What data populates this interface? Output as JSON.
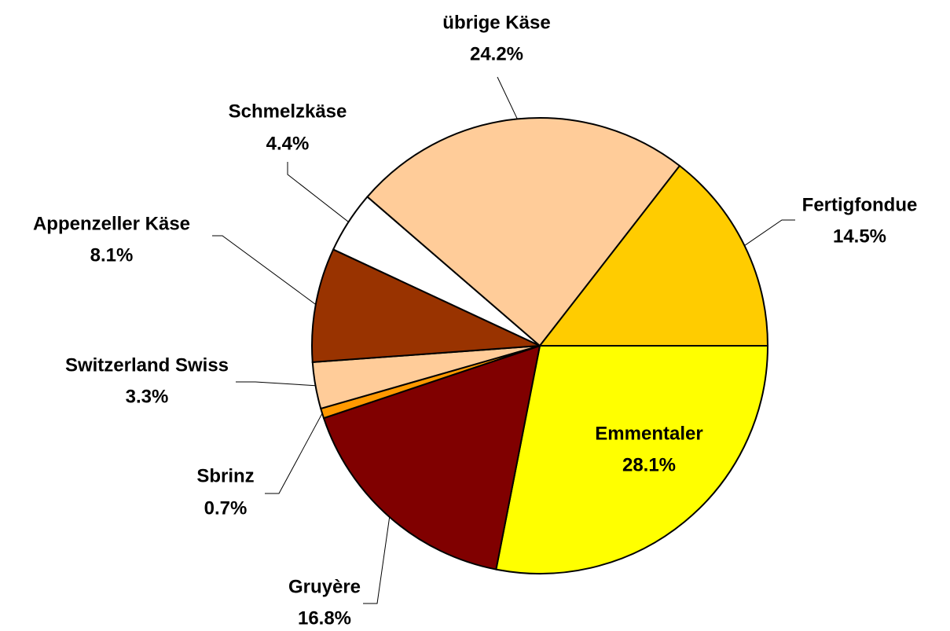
{
  "chart_data": {
    "type": "pie",
    "categories": [
      "Emmentaler",
      "Gruyère",
      "Sbrinz",
      "Switzerland Swiss",
      "Appenzeller Käse",
      "Schmelzkäse",
      "übrige Käse",
      "Fertigfondue"
    ],
    "values": [
      28.1,
      16.8,
      0.7,
      3.3,
      8.1,
      4.4,
      24.2,
      14.5
    ],
    "value_labels": [
      "28.1%",
      "16.8%",
      "0.7%",
      "3.3%",
      "8.1%",
      "4.4%",
      "24.2%",
      "14.5%"
    ],
    "colors": [
      "#ffff00",
      "#800000",
      "#ff9900",
      "#ffcc99",
      "#993300",
      "#ffffff",
      "#ffcc99",
      "#ffcc00"
    ]
  }
}
